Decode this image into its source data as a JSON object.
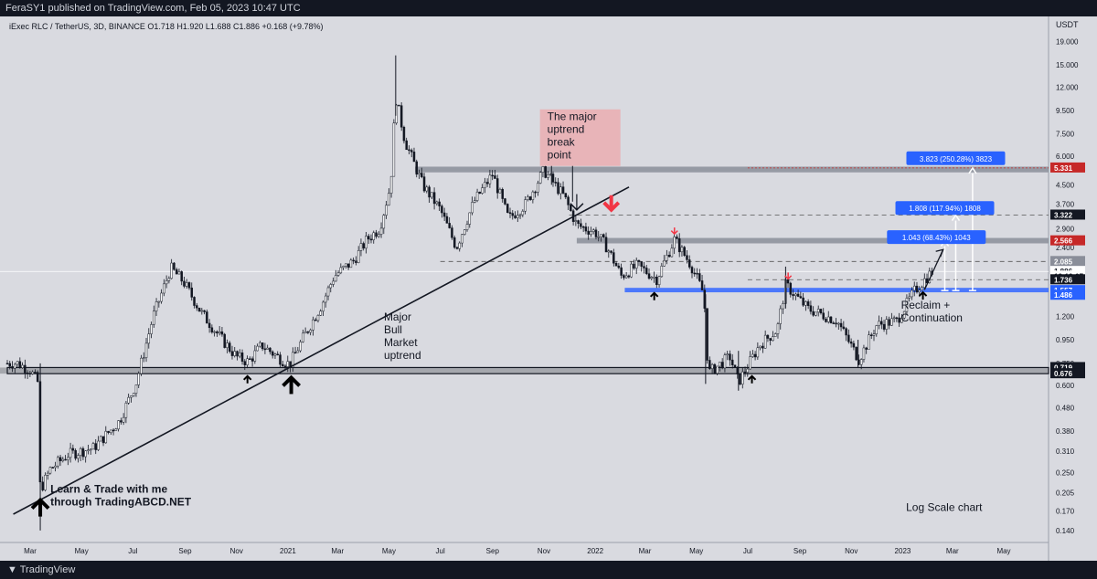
{
  "header": {
    "published": "FeraSY1 published on TradingView.com, Feb 05, 2023 10:47 UTC"
  },
  "footer": {
    "brand": "TradingView",
    "logo_icon": "tradingview-logo-icon"
  },
  "chart_data": {
    "type": "candlestick",
    "symbol_line": "iExec RLC / TetherUS, 3D, BINANCE  O1.718  H1.920  L1.688  C1.886  +0.168 (+9.78%)",
    "currency": "USDT",
    "scale": "log",
    "y_ticks": [
      19.0,
      15.0,
      12.0,
      9.5,
      7.5,
      6.0,
      4.5,
      3.7,
      2.9,
      2.4,
      1.5,
      1.2,
      0.95,
      0.75,
      0.6,
      0.48,
      0.38,
      0.31,
      0.25,
      0.205,
      0.17,
      0.14
    ],
    "y_tick_labels": [
      "19.000",
      "15.000",
      "12.000",
      "9.500",
      "7.500",
      "6.000",
      "4.500",
      "3.700",
      "2.900",
      "2.400",
      "1.500",
      "1.200",
      "0.950",
      "0.750",
      "0.600",
      "0.480",
      "0.380",
      "0.310",
      "0.250",
      "0.205",
      "0.170",
      "0.140"
    ],
    "x_ticks": [
      "Mar",
      "May",
      "Jul",
      "Sep",
      "Nov",
      "2021",
      "Mar",
      "May",
      "Jul",
      "Sep",
      "Nov",
      "2022",
      "Mar",
      "May",
      "Jul",
      "Sep",
      "Nov",
      "2023",
      "Mar",
      "May"
    ],
    "price_path": [
      [
        "2020-02-15",
        0.75
      ],
      [
        "2020-03-01",
        0.7
      ],
      [
        "2020-03-10",
        0.62
      ],
      [
        "2020-03-13",
        0.21
      ],
      [
        "2020-03-25",
        0.26
      ],
      [
        "2020-04-15",
        0.3
      ],
      [
        "2020-05-15",
        0.32
      ],
      [
        "2020-06-15",
        0.42
      ],
      [
        "2020-07-05",
        0.62
      ],
      [
        "2020-07-25",
        1.2
      ],
      [
        "2020-08-15",
        1.95
      ],
      [
        "2020-08-30",
        1.7
      ],
      [
        "2020-09-20",
        1.25
      ],
      [
        "2020-10-15",
        0.95
      ],
      [
        "2020-11-01",
        0.8
      ],
      [
        "2020-11-15",
        0.76
      ],
      [
        "2020-12-01",
        0.9
      ],
      [
        "2020-12-20",
        0.8
      ],
      [
        "2021-01-03",
        0.74
      ],
      [
        "2021-01-20",
        0.98
      ],
      [
        "2021-02-10",
        1.35
      ],
      [
        "2021-02-25",
        1.8
      ],
      [
        "2021-03-20",
        2.1
      ],
      [
        "2021-04-05",
        2.6
      ],
      [
        "2021-04-20",
        2.9
      ],
      [
        "2021-05-03",
        4.5
      ],
      [
        "2021-05-09",
        11.0
      ],
      [
        "2021-05-20",
        7.0
      ],
      [
        "2021-06-10",
        4.5
      ],
      [
        "2021-07-01",
        3.5
      ],
      [
        "2021-07-20",
        2.4
      ],
      [
        "2021-08-10",
        3.8
      ],
      [
        "2021-09-01",
        5.0
      ],
      [
        "2021-09-20",
        3.2
      ],
      [
        "2021-10-10",
        3.7
      ],
      [
        "2021-11-01",
        5.2
      ],
      [
        "2021-11-25",
        4.0
      ],
      [
        "2021-12-10",
        3.0
      ],
      [
        "2022-01-01",
        2.8
      ],
      [
        "2022-01-15",
        2.4
      ],
      [
        "2022-02-01",
        1.8
      ],
      [
        "2022-02-20",
        2.0
      ],
      [
        "2022-03-15",
        1.75
      ],
      [
        "2022-04-05",
        2.6
      ],
      [
        "2022-04-25",
        2.0
      ],
      [
        "2022-05-10",
        1.5
      ],
      [
        "2022-05-15",
        0.68
      ],
      [
        "2022-06-10",
        0.8
      ],
      [
        "2022-06-20",
        0.62
      ],
      [
        "2022-07-15",
        0.9
      ],
      [
        "2022-08-05",
        1.05
      ],
      [
        "2022-08-15",
        1.65
      ],
      [
        "2022-09-10",
        1.3
      ],
      [
        "2022-10-15",
        1.15
      ],
      [
        "2022-11-10",
        0.78
      ],
      [
        "2022-12-01",
        1.1
      ],
      [
        "2022-12-25",
        1.15
      ],
      [
        "2023-01-15",
        1.55
      ],
      [
        "2023-02-05",
        1.886
      ]
    ],
    "horizontal_zones": [
      {
        "name": "resistance-5.3",
        "price_low": 5.1,
        "price_high": 5.4,
        "color": "#8a8e99"
      },
      {
        "name": "resistance-2.6",
        "price_low": 2.5,
        "price_high": 2.64,
        "color": "#8a8e99"
      },
      {
        "name": "support-1.6",
        "price_low": 1.53,
        "price_high": 1.6,
        "color": "#3366ff"
      },
      {
        "name": "support-0.7",
        "price_low": 0.676,
        "price_high": 0.719,
        "color": "#9b9da3"
      }
    ],
    "dashed_levels": [
      3.322,
      2.085,
      1.736
    ],
    "trendline": {
      "from": [
        "2020-02-10",
        0.165
      ],
      "to": [
        "2022-02-10",
        4.4
      ]
    },
    "price_labels": [
      {
        "text": "5.331",
        "price": 5.331,
        "bg": "#c62828"
      },
      {
        "text": "3.322",
        "price": 3.322,
        "bg": "#131722"
      },
      {
        "text": "2.566",
        "price": 2.566,
        "bg": "#c62828"
      },
      {
        "text": "2.085",
        "price": 2.085,
        "bg": "#8a8e99"
      },
      {
        "text": "1.886",
        "price": 1.886,
        "bg": "#ffffff"
      },
      {
        "text": "13:12:07",
        "price": 1.8,
        "bg": "#ffffff"
      },
      {
        "text": "1.736",
        "price": 1.736,
        "bg": "#131722"
      },
      {
        "text": "1.557",
        "price": 1.557,
        "bg": "#2962ff"
      },
      {
        "text": "1.486",
        "price": 1.486,
        "bg": "#2962ff"
      },
      {
        "text": "0.719",
        "price": 0.719,
        "bg": "#131722"
      },
      {
        "text": "0.676",
        "price": 0.676,
        "bg": "#131722"
      }
    ],
    "measure_labels": [
      {
        "text": "3.823 (250.28%) 3823",
        "price": 5.85,
        "date": "2023-03-05"
      },
      {
        "text": "1.808 (117.94%) 1808",
        "price": 3.55,
        "date": "2023-02-20"
      },
      {
        "text": "1.043 (68.43%) 1043",
        "price": 2.65,
        "date": "2023-02-10"
      }
    ],
    "measure_arrows": [
      {
        "date": "2023-03-25",
        "from": 1.557,
        "to": 5.33
      },
      {
        "date": "2023-03-05",
        "from": 1.557,
        "to": 3.32
      },
      {
        "date": "2023-02-20",
        "from": 1.557,
        "to": 2.57
      }
    ],
    "annotations": [
      {
        "text": "The major uptrend break point",
        "price": 8.6,
        "date": "2021-11-05",
        "bg": "#e8b4b8"
      },
      {
        "text": "Major Bull Market uptrend",
        "price": 1.15,
        "date": "2021-04-25"
      },
      {
        "text": "Reclaim + Continuation",
        "price": 1.3,
        "date": "2022-12-30"
      },
      {
        "text": "Learn & Trade with me through TradingABCD.NET",
        "price": 0.205,
        "date": "2020-03-25"
      },
      {
        "text": "Log Scale chart",
        "price": 0.17,
        "date": "2023-01-05"
      }
    ],
    "up_arrows": [
      {
        "date": "2020-03-13",
        "price": 0.19,
        "size": "big"
      },
      {
        "date": "2020-11-14",
        "price": 0.66,
        "size": "small"
      },
      {
        "date": "2021-01-05",
        "price": 0.65,
        "size": "big"
      },
      {
        "date": "2022-03-12",
        "price": 1.52,
        "size": "small"
      },
      {
        "date": "2022-07-06",
        "price": 0.66,
        "size": "small"
      },
      {
        "date": "2023-01-25",
        "price": 1.53,
        "size": "small"
      }
    ],
    "down_arrows": [
      {
        "date": "2022-01-20",
        "price": 3.5,
        "size": "big"
      },
      {
        "date": "2022-04-05",
        "price": 2.75,
        "size": "small"
      },
      {
        "date": "2022-08-18",
        "price": 1.75,
        "size": "small"
      }
    ]
  }
}
